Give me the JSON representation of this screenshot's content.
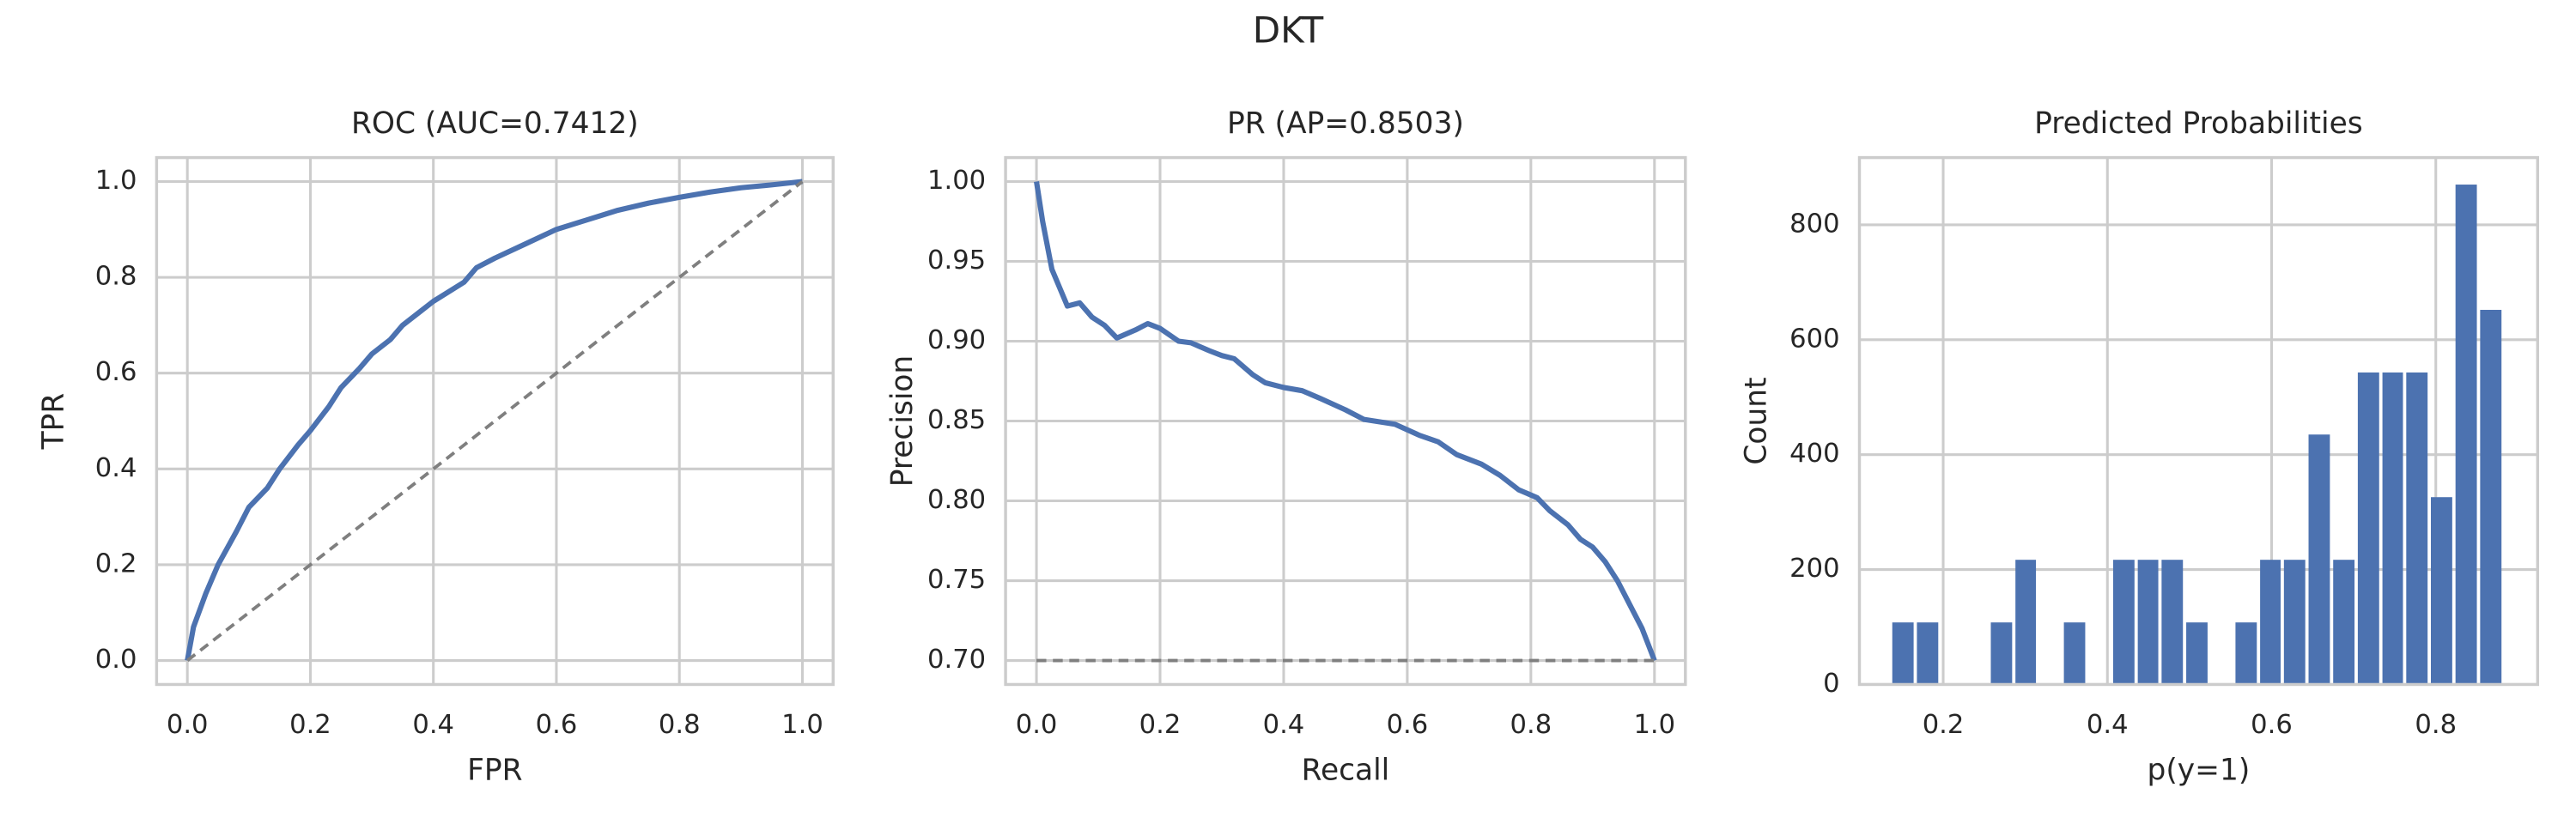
{
  "title": "DKT",
  "chart_data": [
    {
      "type": "line",
      "title": "ROC (AUC=0.7412)",
      "xlabel": "FPR",
      "ylabel": "TPR",
      "xlim": [
        -0.05,
        1.05
      ],
      "ylim": [
        -0.05,
        1.05
      ],
      "xticks": [
        {
          "value": 0,
          "label": "0.0"
        },
        0.2,
        0.4,
        0.6,
        0.8,
        {
          "value": 1,
          "label": "1.0"
        }
      ],
      "yticks": [
        {
          "value": 0,
          "label": "0.0"
        },
        0.2,
        0.4,
        0.6,
        0.8,
        {
          "value": 1,
          "label": "1.0"
        }
      ],
      "grid": true,
      "series": [
        {
          "color": "#4c72b0",
          "linestyle": "solid",
          "x": [
            0,
            0.01,
            0.03,
            0.05,
            0.08,
            0.1,
            0.13,
            0.15,
            0.18,
            0.2,
            0.23,
            0.25,
            0.28,
            0.3,
            0.33,
            0.35,
            0.38,
            0.4,
            0.45,
            0.47,
            0.5,
            0.55,
            0.6,
            0.65,
            0.7,
            0.75,
            0.8,
            0.85,
            0.9,
            0.95,
            1
          ],
          "values": [
            0,
            0.07,
            0.14,
            0.2,
            0.27,
            0.32,
            0.36,
            0.4,
            0.45,
            0.48,
            0.53,
            0.57,
            0.61,
            0.64,
            0.67,
            0.7,
            0.73,
            0.75,
            0.79,
            0.82,
            0.84,
            0.87,
            0.9,
            0.92,
            0.94,
            0.955,
            0.967,
            0.978,
            0.987,
            0.993,
            1
          ]
        },
        {
          "color": "#7f7f7f",
          "linestyle": "dashed",
          "x": [
            0,
            1
          ],
          "values": [
            0,
            1
          ]
        }
      ]
    },
    {
      "type": "line",
      "title": "PR (AP=0.8503)",
      "xlabel": "Recall",
      "ylabel": "Precision",
      "xlim": [
        -0.05,
        1.05
      ],
      "ylim": [
        0.685,
        1.015
      ],
      "xticks": [
        {
          "value": 0,
          "label": "0.0"
        },
        0.2,
        0.4,
        0.6,
        0.8,
        {
          "value": 1,
          "label": "1.0"
        }
      ],
      "yticks": [
        {
          "value": 0.7,
          "label": "0.70"
        },
        0.75,
        {
          "value": 0.8,
          "label": "0.80"
        },
        0.85,
        {
          "value": 0.9,
          "label": "0.90"
        },
        0.95,
        {
          "value": 1,
          "label": "1.00"
        }
      ],
      "grid": true,
      "series": [
        {
          "color": "#4c72b0",
          "linestyle": "solid",
          "x": [
            0,
            0.01,
            0.025,
            0.05,
            0.07,
            0.09,
            0.11,
            0.13,
            0.16,
            0.18,
            0.2,
            0.23,
            0.25,
            0.28,
            0.3,
            0.32,
            0.35,
            0.37,
            0.4,
            0.43,
            0.46,
            0.5,
            0.53,
            0.58,
            0.62,
            0.65,
            0.68,
            0.72,
            0.75,
            0.78,
            0.81,
            0.83,
            0.86,
            0.88,
            0.9,
            0.92,
            0.94,
            0.96,
            0.98,
            0.99,
            1
          ],
          "values": [
            1,
            0.975,
            0.945,
            0.922,
            0.924,
            0.915,
            0.91,
            0.902,
            0.907,
            0.911,
            0.908,
            0.9,
            0.899,
            0.894,
            0.891,
            0.889,
            0.879,
            0.874,
            0.871,
            0.869,
            0.864,
            0.857,
            0.851,
            0.848,
            0.841,
            0.837,
            0.829,
            0.823,
            0.816,
            0.807,
            0.802,
            0.794,
            0.785,
            0.776,
            0.771,
            0.762,
            0.75,
            0.735,
            0.72,
            0.71,
            0.7
          ]
        },
        {
          "color": "#7f7f7f",
          "linestyle": "dashed",
          "x": [
            0,
            1
          ],
          "values": [
            0.7,
            0.7
          ]
        }
      ]
    },
    {
      "type": "histogram",
      "title": "Predicted Probabilities",
      "xlabel": "p(y=1)",
      "ylabel": "Count",
      "xlim": [
        0.098,
        0.924
      ],
      "ylim": [
        0,
        917
      ],
      "xticks": [
        0.2,
        0.4,
        0.6,
        0.8
      ],
      "yticks": [
        0,
        200,
        400,
        600,
        800
      ],
      "grid": true,
      "color": "#4c72b0",
      "bins": [
        0.138,
        0.168,
        0.198,
        0.228,
        0.258,
        0.288,
        0.317,
        0.347,
        0.377,
        0.407,
        0.437,
        0.466,
        0.496,
        0.526,
        0.556,
        0.586,
        0.615,
        0.645,
        0.675,
        0.705,
        0.735,
        0.764,
        0.794,
        0.824,
        0.854,
        0.884
      ],
      "values": [
        108,
        108,
        0,
        0,
        108,
        217,
        0,
        108,
        0,
        217,
        217,
        217,
        108,
        0,
        108,
        217,
        217,
        435,
        217,
        543,
        543,
        543,
        326,
        870,
        652
      ]
    }
  ]
}
